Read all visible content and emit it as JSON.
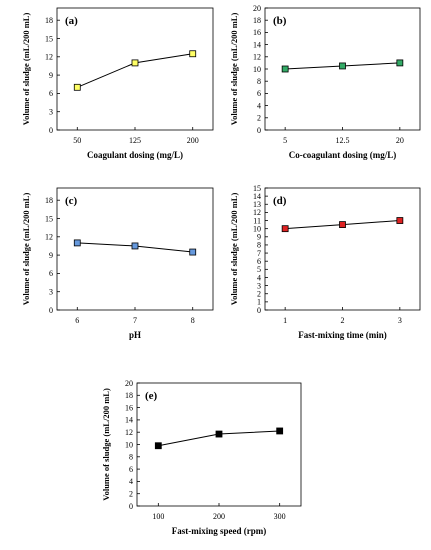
{
  "chart_data": [
    {
      "type": "line",
      "panel_label": "(a)",
      "xlabel": "Coagulant dosing (mg/L)",
      "ylabel": "Volume of sludge (mL/200 mL)",
      "categories": [
        "50",
        "125",
        "200"
      ],
      "values": [
        7,
        11,
        12.5
      ],
      "yticks": [
        "0",
        "3",
        "6",
        "9",
        "12",
        "15",
        "18"
      ],
      "ylim": [
        0,
        20
      ],
      "marker_color": "#ffff66"
    },
    {
      "type": "line",
      "panel_label": "(b)",
      "xlabel": "Co-coagulant dosing (mg/L)",
      "ylabel": "Volume of sludge (mL/200 mL)",
      "categories": [
        "5",
        "12.5",
        "20"
      ],
      "values": [
        10,
        10.5,
        11
      ],
      "yticks": [
        "0",
        "2",
        "4",
        "6",
        "8",
        "10",
        "12",
        "14",
        "16",
        "18",
        "20"
      ],
      "ylim": [
        0,
        20
      ],
      "marker_color": "#33aa66"
    },
    {
      "type": "line",
      "panel_label": "(c)",
      "xlabel": "pH",
      "ylabel": "Volume of sludge (mL/200 mL)",
      "categories": [
        "6",
        "7",
        "8"
      ],
      "values": [
        11,
        10.5,
        9.5
      ],
      "yticks": [
        "0",
        "3",
        "6",
        "9",
        "12",
        "15",
        "18"
      ],
      "ylim": [
        0,
        20
      ],
      "marker_color": "#6699dd"
    },
    {
      "type": "line",
      "panel_label": "(d)",
      "xlabel": "Fast-mixing time (min)",
      "ylabel": "Volume of sludge (mL/200 mL)",
      "categories": [
        "1",
        "2",
        "3"
      ],
      "values": [
        10,
        10.5,
        11
      ],
      "yticks": [
        "0",
        "1",
        "2",
        "3",
        "4",
        "5",
        "6",
        "7",
        "8",
        "9",
        "10",
        "11",
        "12",
        "13",
        "14",
        "15"
      ],
      "ylim": [
        0,
        15
      ],
      "marker_color": "#dd2222"
    },
    {
      "type": "line",
      "panel_label": "(e)",
      "xlabel": "Fast-mixing speed (rpm)",
      "ylabel": "Volume of sludge (mL/200 mL)",
      "categories": [
        "100",
        "200",
        "300"
      ],
      "values": [
        9.8,
        11.7,
        12.2
      ],
      "yticks": [
        "0",
        "2",
        "4",
        "6",
        "8",
        "10",
        "12",
        "14",
        "16",
        "18",
        "20"
      ],
      "ylim": [
        0,
        20
      ],
      "marker_color": "#000000"
    }
  ]
}
